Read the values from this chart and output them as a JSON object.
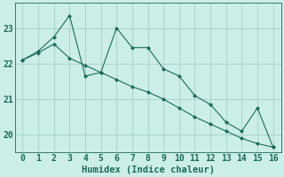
{
  "xlabel": "Humidex (Indice chaleur)",
  "background_color": "#cceee8",
  "grid_color": "#aad4ce",
  "line_color": "#1a6b5a",
  "x_jagged": [
    0,
    1,
    2,
    3,
    4,
    5,
    6,
    7,
    8,
    9,
    10,
    11,
    12,
    13,
    14,
    15,
    16
  ],
  "y_jagged": [
    22.1,
    22.35,
    22.75,
    23.35,
    21.65,
    21.75,
    23.0,
    22.45,
    22.45,
    21.85,
    21.65,
    21.1,
    20.85,
    20.35,
    20.1,
    20.75,
    19.65
  ],
  "x_smooth": [
    0,
    1,
    2,
    3,
    4,
    5,
    6,
    7,
    8,
    9,
    10,
    11,
    12,
    13,
    14,
    15,
    16
  ],
  "y_smooth": [
    22.1,
    22.3,
    22.55,
    22.15,
    21.95,
    21.75,
    21.55,
    21.35,
    21.2,
    21.0,
    20.75,
    20.5,
    20.3,
    20.1,
    19.9,
    19.75,
    19.65
  ],
  "xlim": [
    -0.5,
    16.5
  ],
  "ylim": [
    19.5,
    23.7
  ],
  "yticks": [
    20,
    21,
    22,
    23
  ],
  "xticks": [
    0,
    1,
    2,
    3,
    4,
    5,
    6,
    7,
    8,
    9,
    10,
    11,
    12,
    13,
    14,
    15,
    16
  ],
  "tick_fontsize": 7,
  "xlabel_fontsize": 7.5,
  "marker_size": 2.5
}
